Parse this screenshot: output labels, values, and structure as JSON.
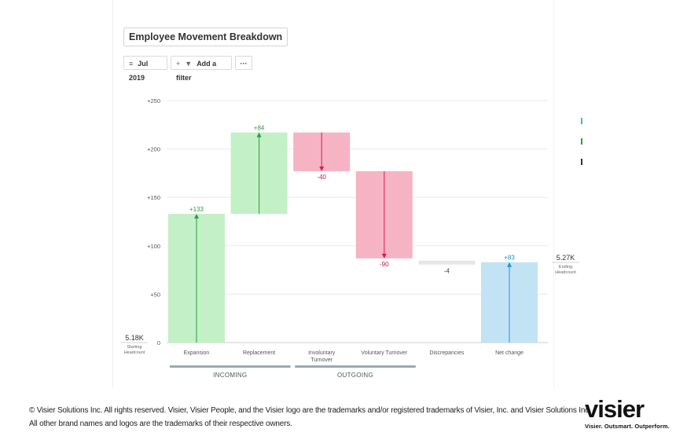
{
  "title": "Employee Movement Breakdown",
  "toolbar": {
    "date": "Jul 2019",
    "add_filter": "Add a filter",
    "more": "···"
  },
  "chart_data": {
    "type": "waterfall",
    "title": "Employee Movement Breakdown",
    "y_ticks": [
      0,
      50,
      100,
      150,
      200,
      250
    ],
    "y_tick_labels": [
      "0",
      "+50",
      "+100",
      "+150",
      "+200",
      "+250"
    ],
    "ylim": [
      0,
      250
    ],
    "start": {
      "value": "5.18K",
      "label": "Starting Headcount"
    },
    "end": {
      "value": "5.27K",
      "label": "Ending Headcount"
    },
    "bars": [
      {
        "category": "Expansion",
        "value": 133,
        "label": "+133",
        "kind": "increase"
      },
      {
        "category": "Replacement",
        "value": 84,
        "label": "+84",
        "kind": "increase"
      },
      {
        "category": "Involuntary Turnover",
        "value": -40,
        "label": "-40",
        "kind": "decrease"
      },
      {
        "category": "Voluntary Turnover",
        "value": -90,
        "label": "-90",
        "kind": "decrease"
      },
      {
        "category": "Discrepancies",
        "value": -4,
        "label": "-4",
        "kind": "neutral"
      },
      {
        "category": "Net change",
        "value": 83,
        "label": "+83",
        "kind": "total"
      }
    ],
    "groups": [
      {
        "name": "INCOMING",
        "from": 0,
        "to": 1
      },
      {
        "name": "OUTGOING",
        "from": 2,
        "to": 3
      }
    ]
  },
  "colors": {
    "increase_fill": "#c3f0c6",
    "increase_stroke": "#2e9e3a",
    "increase_text": "#2e9e3a",
    "decrease_fill": "#f6b3c3",
    "decrease_stroke": "#d61f4f",
    "decrease_text": "#c01e45",
    "neutral_fill": "#e4e6e7",
    "total_fill": "#c2e3f4",
    "total_stroke": "#1b9ad6",
    "total_text": "#1b8fc9",
    "grid": "#e7e9eb",
    "group_bar": "#9aaab0"
  },
  "footer": {
    "line1": "© Visier Solutions Inc. All rights reserved. Visier, Visier People, and the Visier logo are the trademarks and/or registered trademarks of Visier, Inc. and Visier Solutions Inc.",
    "line2": "All other brand names and logos are the trademarks of their respective owners."
  },
  "logo": {
    "wordmark": "visier",
    "tagline": "Visier. Outsmart. Outperform."
  }
}
